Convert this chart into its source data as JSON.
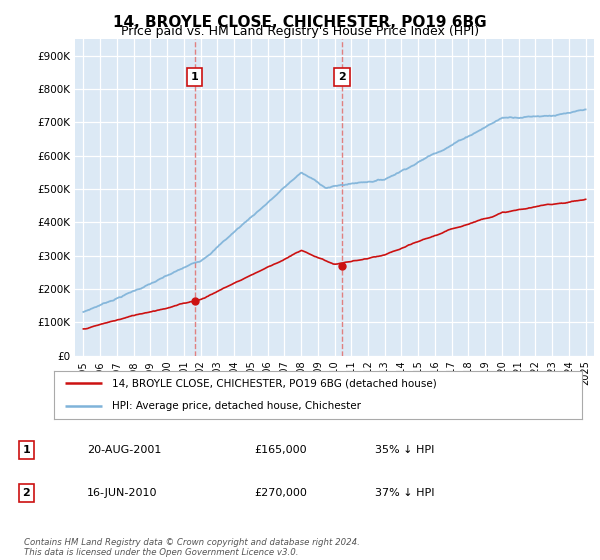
{
  "title": "14, BROYLE CLOSE, CHICHESTER, PO19 6BG",
  "subtitle": "Price paid vs. HM Land Registry's House Price Index (HPI)",
  "ylim": [
    0,
    950000
  ],
  "yticks": [
    0,
    100000,
    200000,
    300000,
    400000,
    500000,
    600000,
    700000,
    800000,
    900000
  ],
  "ytick_labels": [
    "£0",
    "£100K",
    "£200K",
    "£300K",
    "£400K",
    "£500K",
    "£600K",
    "£700K",
    "£800K",
    "£900K"
  ],
  "hpi_color": "#7fb3d9",
  "price_color": "#cc1111",
  "vline_color": "#e08080",
  "sale1_date": 2001.64,
  "sale1_price": 165000,
  "sale2_date": 2010.46,
  "sale2_price": 270000,
  "plot_bg": "#dce9f5",
  "legend_entries": [
    "14, BROYLE CLOSE, CHICHESTER, PO19 6BG (detached house)",
    "HPI: Average price, detached house, Chichester"
  ],
  "table_rows": [
    [
      "1",
      "20-AUG-2001",
      "£165,000",
      "35% ↓ HPI"
    ],
    [
      "2",
      "16-JUN-2010",
      "£270,000",
      "37% ↓ HPI"
    ]
  ],
  "footer": "Contains HM Land Registry data © Crown copyright and database right 2024.\nThis data is licensed under the Open Government Licence v3.0.",
  "title_fontsize": 11,
  "subtitle_fontsize": 9,
  "tick_fontsize": 7.5
}
